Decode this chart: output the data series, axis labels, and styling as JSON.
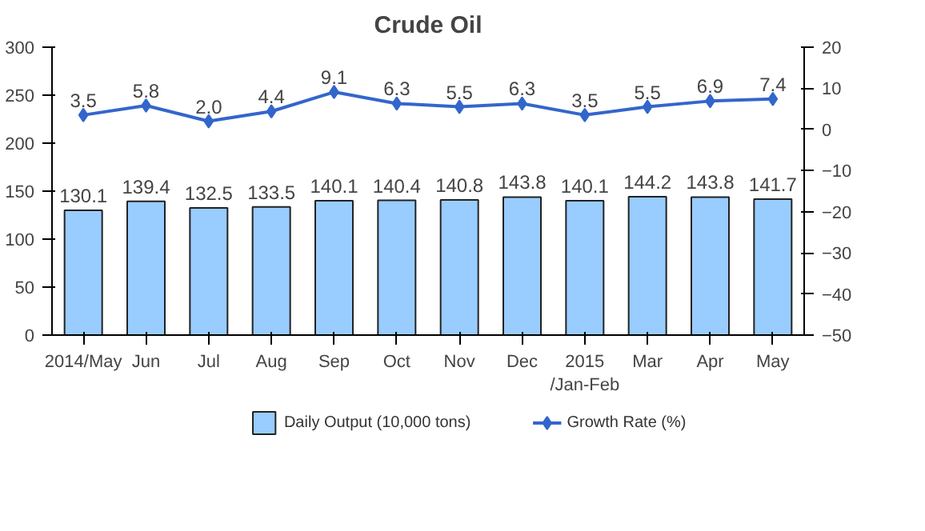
{
  "chart_data": {
    "type": "bar",
    "title": "Crude Oil",
    "categories": [
      "2014/May",
      "Jun",
      "Jul",
      "Aug",
      "Sep",
      "Oct",
      "Nov",
      "Dec",
      "2015\n/Jan-Feb",
      "Mar",
      "Apr",
      "May"
    ],
    "series": [
      {
        "name": "Daily Output (10,000 tons)",
        "color": "#99ccff",
        "values": [
          130.1,
          139.4,
          132.5,
          133.5,
          140.1,
          140.4,
          140.8,
          143.8,
          140.1,
          144.2,
          143.8,
          141.7
        ]
      },
      {
        "name": "Growth Rate (%)",
        "type": "line",
        "axis": "y2",
        "color": "#3366cc",
        "marker": "diamond",
        "values": [
          3.5,
          5.8,
          2.0,
          4.4,
          9.1,
          6.3,
          5.5,
          6.3,
          3.5,
          5.5,
          6.9,
          7.4
        ],
        "value_labels": [
          "3.5",
          "5.8",
          "2.0",
          "4.4",
          "9.1",
          "6.3",
          "5.5",
          "6.3",
          "3.5",
          "5.5",
          "6.9",
          "7.4"
        ]
      }
    ],
    "ylim": [
      0,
      300
    ],
    "yticks": [
      0,
      50,
      100,
      150,
      200,
      250,
      300
    ],
    "y2lim": [
      -50,
      20
    ],
    "y2ticks": [
      -50,
      -40,
      -30,
      -20,
      -10,
      0,
      10,
      20
    ],
    "data_labels": true,
    "legend": "bottom",
    "grid": false
  }
}
